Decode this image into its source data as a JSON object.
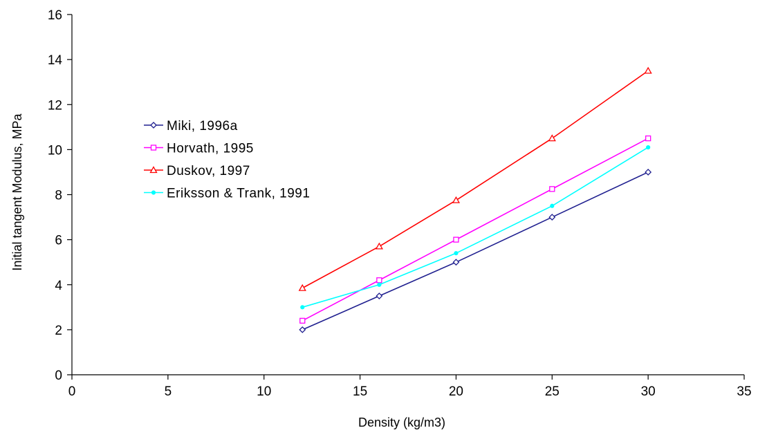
{
  "chart_data": {
    "type": "line",
    "xlabel": "Density (kg/m3)",
    "ylabel": "Initial tangent Modulus, MPa",
    "xlim": [
      0,
      35
    ],
    "ylim": [
      0,
      16
    ],
    "x_ticks": [
      "0",
      "5",
      "10",
      "15",
      "20",
      "25",
      "30",
      "35"
    ],
    "y_ticks": [
      "0",
      "2",
      "4",
      "6",
      "8",
      "10",
      "12",
      "14",
      "16"
    ],
    "grid": false,
    "legend_position": "left",
    "series": [
      {
        "name": "Miki, 1996a",
        "color": "#1f1f8f",
        "marker": "diamond",
        "x": [
          12,
          16,
          20,
          25,
          30
        ],
        "y": [
          2.0,
          3.5,
          5.0,
          7.0,
          9.0
        ]
      },
      {
        "name": "Horvath, 1995",
        "color": "#ff00ff",
        "marker": "square",
        "x": [
          12,
          16,
          20,
          25,
          30
        ],
        "y": [
          2.4,
          4.2,
          6.0,
          8.25,
          10.5
        ]
      },
      {
        "name": "Duskov, 1997",
        "color": "#ff0000",
        "marker": "triangle",
        "x": [
          12,
          16,
          20,
          25,
          30
        ],
        "y": [
          3.85,
          5.7,
          7.75,
          10.5,
          13.5
        ]
      },
      {
        "name": "Eriksson & Trank, 1991",
        "color": "#00ffff",
        "marker": "circle",
        "x": [
          12,
          16,
          20,
          25,
          30
        ],
        "y": [
          3.0,
          4.0,
          5.4,
          7.5,
          10.1
        ]
      }
    ]
  }
}
